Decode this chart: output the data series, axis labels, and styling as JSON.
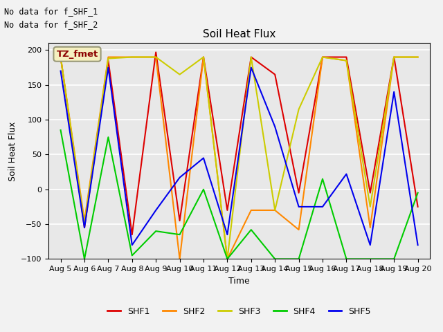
{
  "title": "Soil Heat Flux",
  "xlabel": "Time",
  "ylabel": "Soil Heat Flux",
  "ylim": [
    -100,
    210
  ],
  "yticks": [
    -100,
    -50,
    0,
    50,
    100,
    150,
    200
  ],
  "plot_bg": "#e8e8e8",
  "fig_bg": "#f2f2f2",
  "text_annotations": [
    "No data for f_SHF_1",
    "No data for f_SHF_2"
  ],
  "box_label": "TZ_fmet",
  "legend_labels": [
    "SHF1",
    "SHF2",
    "SHF3",
    "SHF4",
    "SHF5"
  ],
  "line_colors": {
    "SHF1": "#dd0000",
    "SHF2": "#ff8800",
    "SHF3": "#cccc00",
    "SHF4": "#00cc00",
    "SHF5": "#0000ee"
  },
  "x_dates": [
    5,
    6,
    7,
    8,
    9,
    10,
    11,
    12,
    13,
    14,
    15,
    16,
    17,
    18,
    19,
    20
  ],
  "SHF1": [
    190,
    -55,
    185,
    -65,
    197,
    -45,
    190,
    -30,
    190,
    165,
    -5,
    190,
    190,
    -5,
    190,
    -25
  ],
  "SHF2": [
    190,
    -45,
    190,
    190,
    190,
    -100,
    190,
    -100,
    -30,
    -30,
    -58,
    190,
    185,
    -55,
    190,
    190
  ],
  "SHF3": [
    190,
    -50,
    188,
    190,
    190,
    165,
    190,
    -100,
    190,
    -30,
    115,
    190,
    185,
    -25,
    190,
    190
  ],
  "SHF4": [
    85,
    -100,
    75,
    -95,
    -60,
    -65,
    0,
    -100,
    -58,
    -100,
    -100,
    15,
    -100,
    -100,
    -100,
    -5
  ],
  "SHF5": [
    170,
    -55,
    175,
    -80,
    -30,
    17,
    45,
    -65,
    175,
    90,
    -25,
    -25,
    22,
    -80,
    140,
    -80
  ]
}
